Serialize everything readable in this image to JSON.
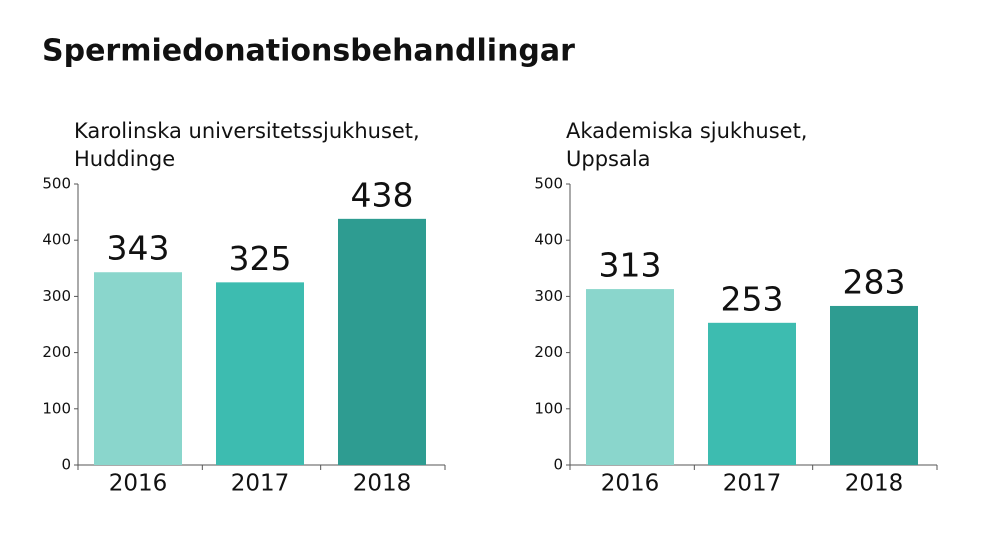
{
  "title": "Spermiedonationsbehandlingar",
  "chart_data": [
    {
      "type": "bar",
      "title": [
        "Karolinska universitetssjukhuset,",
        "Huddinge"
      ],
      "categories": [
        "2016",
        "2017",
        "2018"
      ],
      "values": [
        343,
        325,
        438
      ],
      "colors": [
        "#8ad6cc",
        "#3dbcb0",
        "#2e9c91"
      ],
      "ylim": [
        0,
        500
      ],
      "yticks": [
        0,
        100,
        200,
        300,
        400,
        500
      ]
    },
    {
      "type": "bar",
      "title": [
        "Akademiska sjukhuset,",
        "Uppsala"
      ],
      "categories": [
        "2016",
        "2017",
        "2018"
      ],
      "values": [
        313,
        253,
        283
      ],
      "colors": [
        "#8ad6cc",
        "#3dbcb0",
        "#2e9c91"
      ],
      "ylim": [
        0,
        500
      ],
      "yticks": [
        0,
        100,
        200,
        300,
        400,
        500
      ]
    }
  ]
}
